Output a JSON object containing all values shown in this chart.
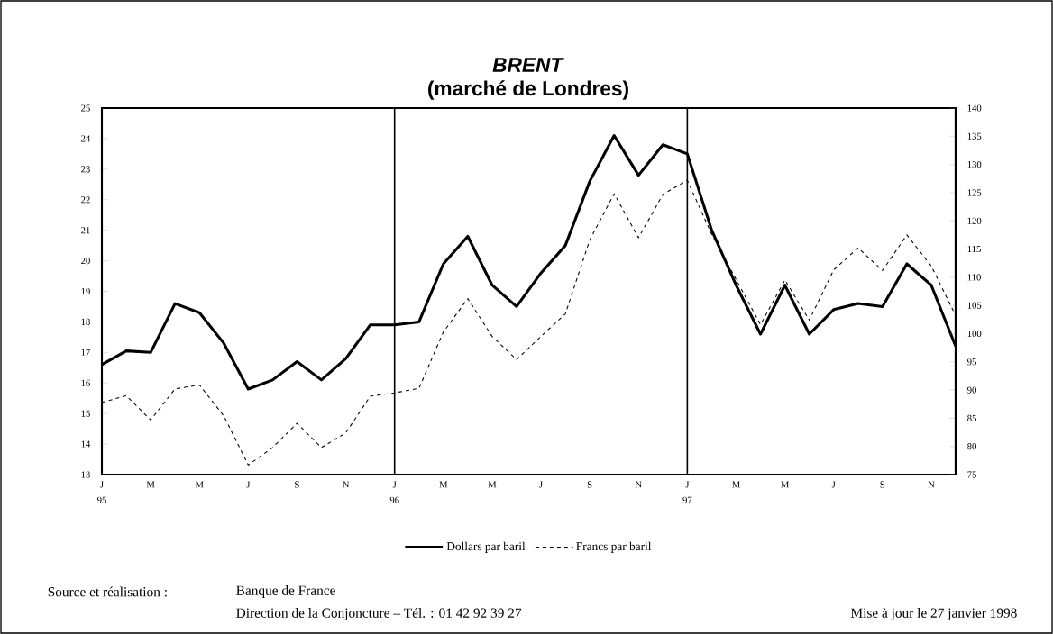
{
  "chart_data": {
    "type": "line",
    "title": "*BRENT*",
    "subtitle": "(marché de Londres)",
    "x": [
      "1995-01",
      "1995-02",
      "1995-03",
      "1995-04",
      "1995-05",
      "1995-06",
      "1995-07",
      "1995-08",
      "1995-09",
      "1995-10",
      "1995-11",
      "1995-12",
      "1996-01",
      "1996-02",
      "1996-03",
      "1996-04",
      "1996-05",
      "1996-06",
      "1996-07",
      "1996-08",
      "1996-09",
      "1996-10",
      "1996-11",
      "1996-12",
      "1997-01",
      "1997-02",
      "1997-03",
      "1997-04",
      "1997-05",
      "1997-06",
      "1997-07",
      "1997-08",
      "1997-09",
      "1997-10",
      "1997-11",
      "1997-12"
    ],
    "xlim": [
      "1995-01",
      "1997-12"
    ],
    "xticks": [
      {
        "value": "1995-01",
        "label": "J 95"
      },
      {
        "value": "1995-03",
        "label": "M"
      },
      {
        "value": "1995-05",
        "label": "M"
      },
      {
        "value": "1995-07",
        "label": "J"
      },
      {
        "value": "1995-09",
        "label": "S"
      },
      {
        "value": "1995-11",
        "label": "N"
      },
      {
        "value": "1996-01",
        "label": "J 96"
      },
      {
        "value": "1996-03",
        "label": "M"
      },
      {
        "value": "1996-05",
        "label": "M"
      },
      {
        "value": "1996-07",
        "label": "J"
      },
      {
        "value": "1996-09",
        "label": "S"
      },
      {
        "value": "1996-11",
        "label": "N"
      },
      {
        "value": "1997-01",
        "label": "J 97"
      },
      {
        "value": "1997-03",
        "label": "M"
      },
      {
        "value": "1997-05",
        "label": "M"
      },
      {
        "value": "1997-07",
        "label": "J"
      },
      {
        "value": "1997-09",
        "label": "S"
      },
      {
        "value": "1997-11",
        "label": "N"
      }
    ],
    "ylim": [
      13,
      25
    ],
    "yticks": [
      13,
      14,
      15,
      16,
      17,
      18,
      19,
      20,
      21,
      22,
      23,
      24,
      25
    ],
    "y2lim": [
      75,
      140
    ],
    "y2ticks": [
      75,
      80,
      85,
      90,
      95,
      100,
      105,
      110,
      115,
      120,
      125,
      130,
      135,
      140
    ],
    "series": [
      {
        "name": "Dollars par baril",
        "color": "#000000",
        "line_style": "solid",
        "values": [
          16.6,
          17.05,
          17.0,
          18.6,
          18.3,
          17.3,
          15.8,
          16.1,
          16.7,
          16.1,
          16.8,
          17.9,
          17.9,
          18.0,
          19.9,
          20.8,
          19.2,
          18.5,
          19.6,
          20.5,
          22.6,
          24.1,
          22.8,
          23.8,
          23.5,
          21.0,
          19.2,
          17.6,
          19.2,
          17.6,
          18.4,
          18.6,
          18.5,
          19.9,
          19.2,
          17.2
        ]
      },
      {
        "name": "Francs par baril",
        "color": "#000000",
        "line_style": "dashed",
        "axis": "y2",
        "values": [
          87.8,
          89.0,
          84.7,
          90.2,
          90.9,
          85.4,
          76.7,
          79.8,
          84.1,
          79.8,
          82.4,
          88.9,
          89.5,
          90.3,
          100.3,
          106.2,
          99.5,
          95.4,
          99.5,
          103.5,
          116.6,
          124.8,
          117.0,
          124.7,
          127.2,
          117.6,
          109.6,
          101.6,
          109.5,
          102.4,
          111.3,
          115.2,
          111.2,
          117.5,
          112.0,
          103.2
        ]
      }
    ],
    "ref_lines": [
      {
        "axis": "x",
        "value": "1996-01",
        "color": "#000000"
      },
      {
        "axis": "x",
        "value": "1997-01",
        "color": "#000000"
      }
    ],
    "legend": "bottom",
    "annotations": [
      "Source et réalisation :",
      "Banque de France",
      "Direction de la Conjoncture – Tél. : 01 42 92 39 27",
      "Mise à jour le 27 janvier 1998"
    ]
  }
}
